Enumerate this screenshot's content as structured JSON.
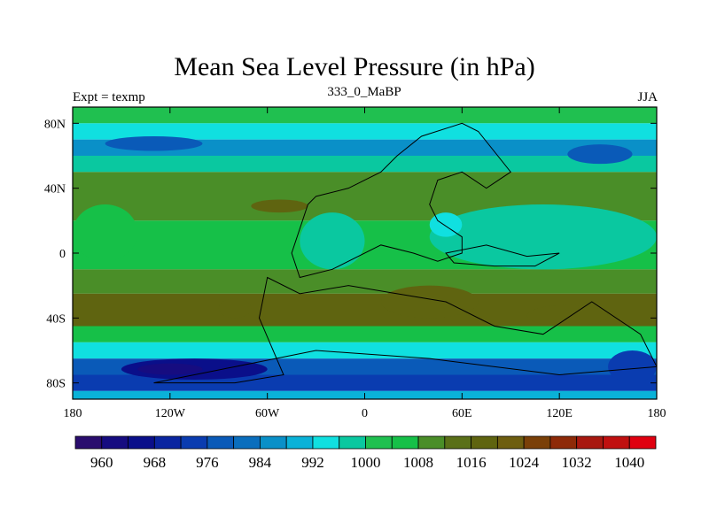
{
  "chart_data": {
    "type": "heatmap",
    "title": "Mean Sea Level Pressure (in hPa)",
    "subtitle": "333_0_MaBP",
    "left_label": "Expt = texmp",
    "right_label": "JJA",
    "units": "hPa",
    "x_ticks": [
      "180",
      "120W",
      "60W",
      "0",
      "60E",
      "120E",
      "180"
    ],
    "y_ticks": [
      "80N",
      "40N",
      "0",
      "40S",
      "80S"
    ],
    "xlim": [
      -180,
      180
    ],
    "ylim": [
      -90,
      90
    ],
    "colorbar_ticks": [
      "960",
      "968",
      "976",
      "984",
      "992",
      "1000",
      "1008",
      "1016",
      "1024",
      "1032",
      "1040"
    ],
    "color_levels": [
      956,
      960,
      964,
      968,
      972,
      976,
      980,
      984,
      988,
      992,
      996,
      1000,
      1004,
      1008,
      1012,
      1016,
      1020,
      1024,
      1028,
      1032,
      1036,
      1040
    ],
    "colors": [
      "#2a0d6e",
      "#160c80",
      "#0a0f8a",
      "#0a25a0",
      "#0a3cb0",
      "#0a5ab8",
      "#0a6ebd",
      "#0a90c8",
      "#0ab2d8",
      "#10e0e0",
      "#0ac8a0",
      "#20c050",
      "#16c048",
      "#4a8e28",
      "#5a7018",
      "#5f6410",
      "#6e5e10",
      "#7a4008",
      "#8e2a08",
      "#a81810",
      "#c01010",
      "#e00010"
    ],
    "field_rows": [
      {
        "lat_range": [
          80,
          90
        ],
        "value": 1001
      },
      {
        "lat_range": [
          70,
          80
        ],
        "value": 995
      },
      {
        "lat_range": [
          60,
          70
        ],
        "value": 986
      },
      {
        "lat_range": [
          50,
          60
        ],
        "value": 999
      },
      {
        "lat_range": [
          30,
          50
        ],
        "value": 1008
      },
      {
        "lat_range": [
          20,
          30
        ],
        "value": 1010
      },
      {
        "lat_range": [
          -10,
          20
        ],
        "value": 1005
      },
      {
        "lat_range": [
          -25,
          -10
        ],
        "value": 1008
      },
      {
        "lat_range": [
          -45,
          -25
        ],
        "value": 1016
      },
      {
        "lat_range": [
          -55,
          -45
        ],
        "value": 1006
      },
      {
        "lat_range": [
          -65,
          -55
        ],
        "value": 994
      },
      {
        "lat_range": [
          -75,
          -65
        ],
        "value": 978
      },
      {
        "lat_range": [
          -85,
          -75
        ],
        "value": 972
      },
      {
        "lat_range": [
          -90,
          -85
        ],
        "value": 990
      }
    ],
    "field_features": [
      {
        "lon": [
          -150,
          -60
        ],
        "lat": [
          -78,
          -65
        ],
        "value": 966
      },
      {
        "lon": [
          -140,
          -100
        ],
        "lat": [
          -75,
          -68
        ],
        "value": 960
      },
      {
        "lon": [
          150,
          180
        ],
        "lat": [
          -80,
          -60
        ],
        "value": 975
      },
      {
        "lon": [
          -160,
          -100
        ],
        "lat": [
          63,
          72
        ],
        "value": 978
      },
      {
        "lon": [
          125,
          165
        ],
        "lat": [
          55,
          67
        ],
        "value": 978
      },
      {
        "lon": [
          -70,
          -35
        ],
        "lat": [
          25,
          33
        ],
        "value": 1017
      },
      {
        "lon": [
          -90,
          -70
        ],
        "lat": [
          -40,
          -28
        ],
        "value": 1016
      },
      {
        "lon": [
          10,
          70
        ],
        "lat": [
          -40,
          -20
        ],
        "value": 1018
      },
      {
        "lon": [
          100,
          150
        ],
        "lat": [
          -45,
          -32
        ],
        "value": 1018
      },
      {
        "lon": [
          -40,
          0
        ],
        "lat": [
          -10,
          25
        ],
        "value": 998
      },
      {
        "lon": [
          40,
          180
        ],
        "lat": [
          -10,
          30
        ],
        "value": 999
      },
      {
        "lon": [
          40,
          60
        ],
        "lat": [
          10,
          25
        ],
        "value": 992
      },
      {
        "lon": [
          -180,
          -140
        ],
        "lat": [
          -5,
          30
        ],
        "value": 1006
      }
    ],
    "continent_outlines": [
      {
        "name": "continent-north",
        "points": [
          [
            -30,
            35
          ],
          [
            -10,
            40
          ],
          [
            10,
            50
          ],
          [
            20,
            60
          ],
          [
            35,
            72
          ],
          [
            60,
            80
          ],
          [
            70,
            75
          ],
          [
            90,
            50
          ],
          [
            75,
            40
          ],
          [
            60,
            50
          ],
          [
            45,
            45
          ],
          [
            40,
            30
          ],
          [
            45,
            20
          ],
          [
            60,
            10
          ],
          [
            60,
            0
          ],
          [
            45,
            -5
          ],
          [
            30,
            0
          ],
          [
            10,
            5
          ],
          [
            -20,
            -10
          ],
          [
            -40,
            -15
          ],
          [
            -45,
            0
          ],
          [
            -40,
            15
          ],
          [
            -35,
            30
          ]
        ]
      },
      {
        "name": "continent-south",
        "points": [
          [
            -60,
            -15
          ],
          [
            -40,
            -25
          ],
          [
            -10,
            -20
          ],
          [
            20,
            -25
          ],
          [
            50,
            -30
          ],
          [
            80,
            -45
          ],
          [
            110,
            -50
          ],
          [
            140,
            -30
          ],
          [
            170,
            -50
          ],
          [
            180,
            -70
          ],
          [
            120,
            -75
          ],
          [
            40,
            -65
          ],
          [
            -30,
            -60
          ],
          [
            -80,
            -70
          ],
          [
            -130,
            -80
          ],
          [
            -80,
            -80
          ],
          [
            -50,
            -75
          ],
          [
            -65,
            -40
          ]
        ]
      },
      {
        "name": "continent-east-strip",
        "points": [
          [
            50,
            0
          ],
          [
            75,
            5
          ],
          [
            100,
            -2
          ],
          [
            120,
            0
          ],
          [
            105,
            -8
          ],
          [
            80,
            -8
          ],
          [
            55,
            -6
          ]
        ]
      }
    ]
  }
}
